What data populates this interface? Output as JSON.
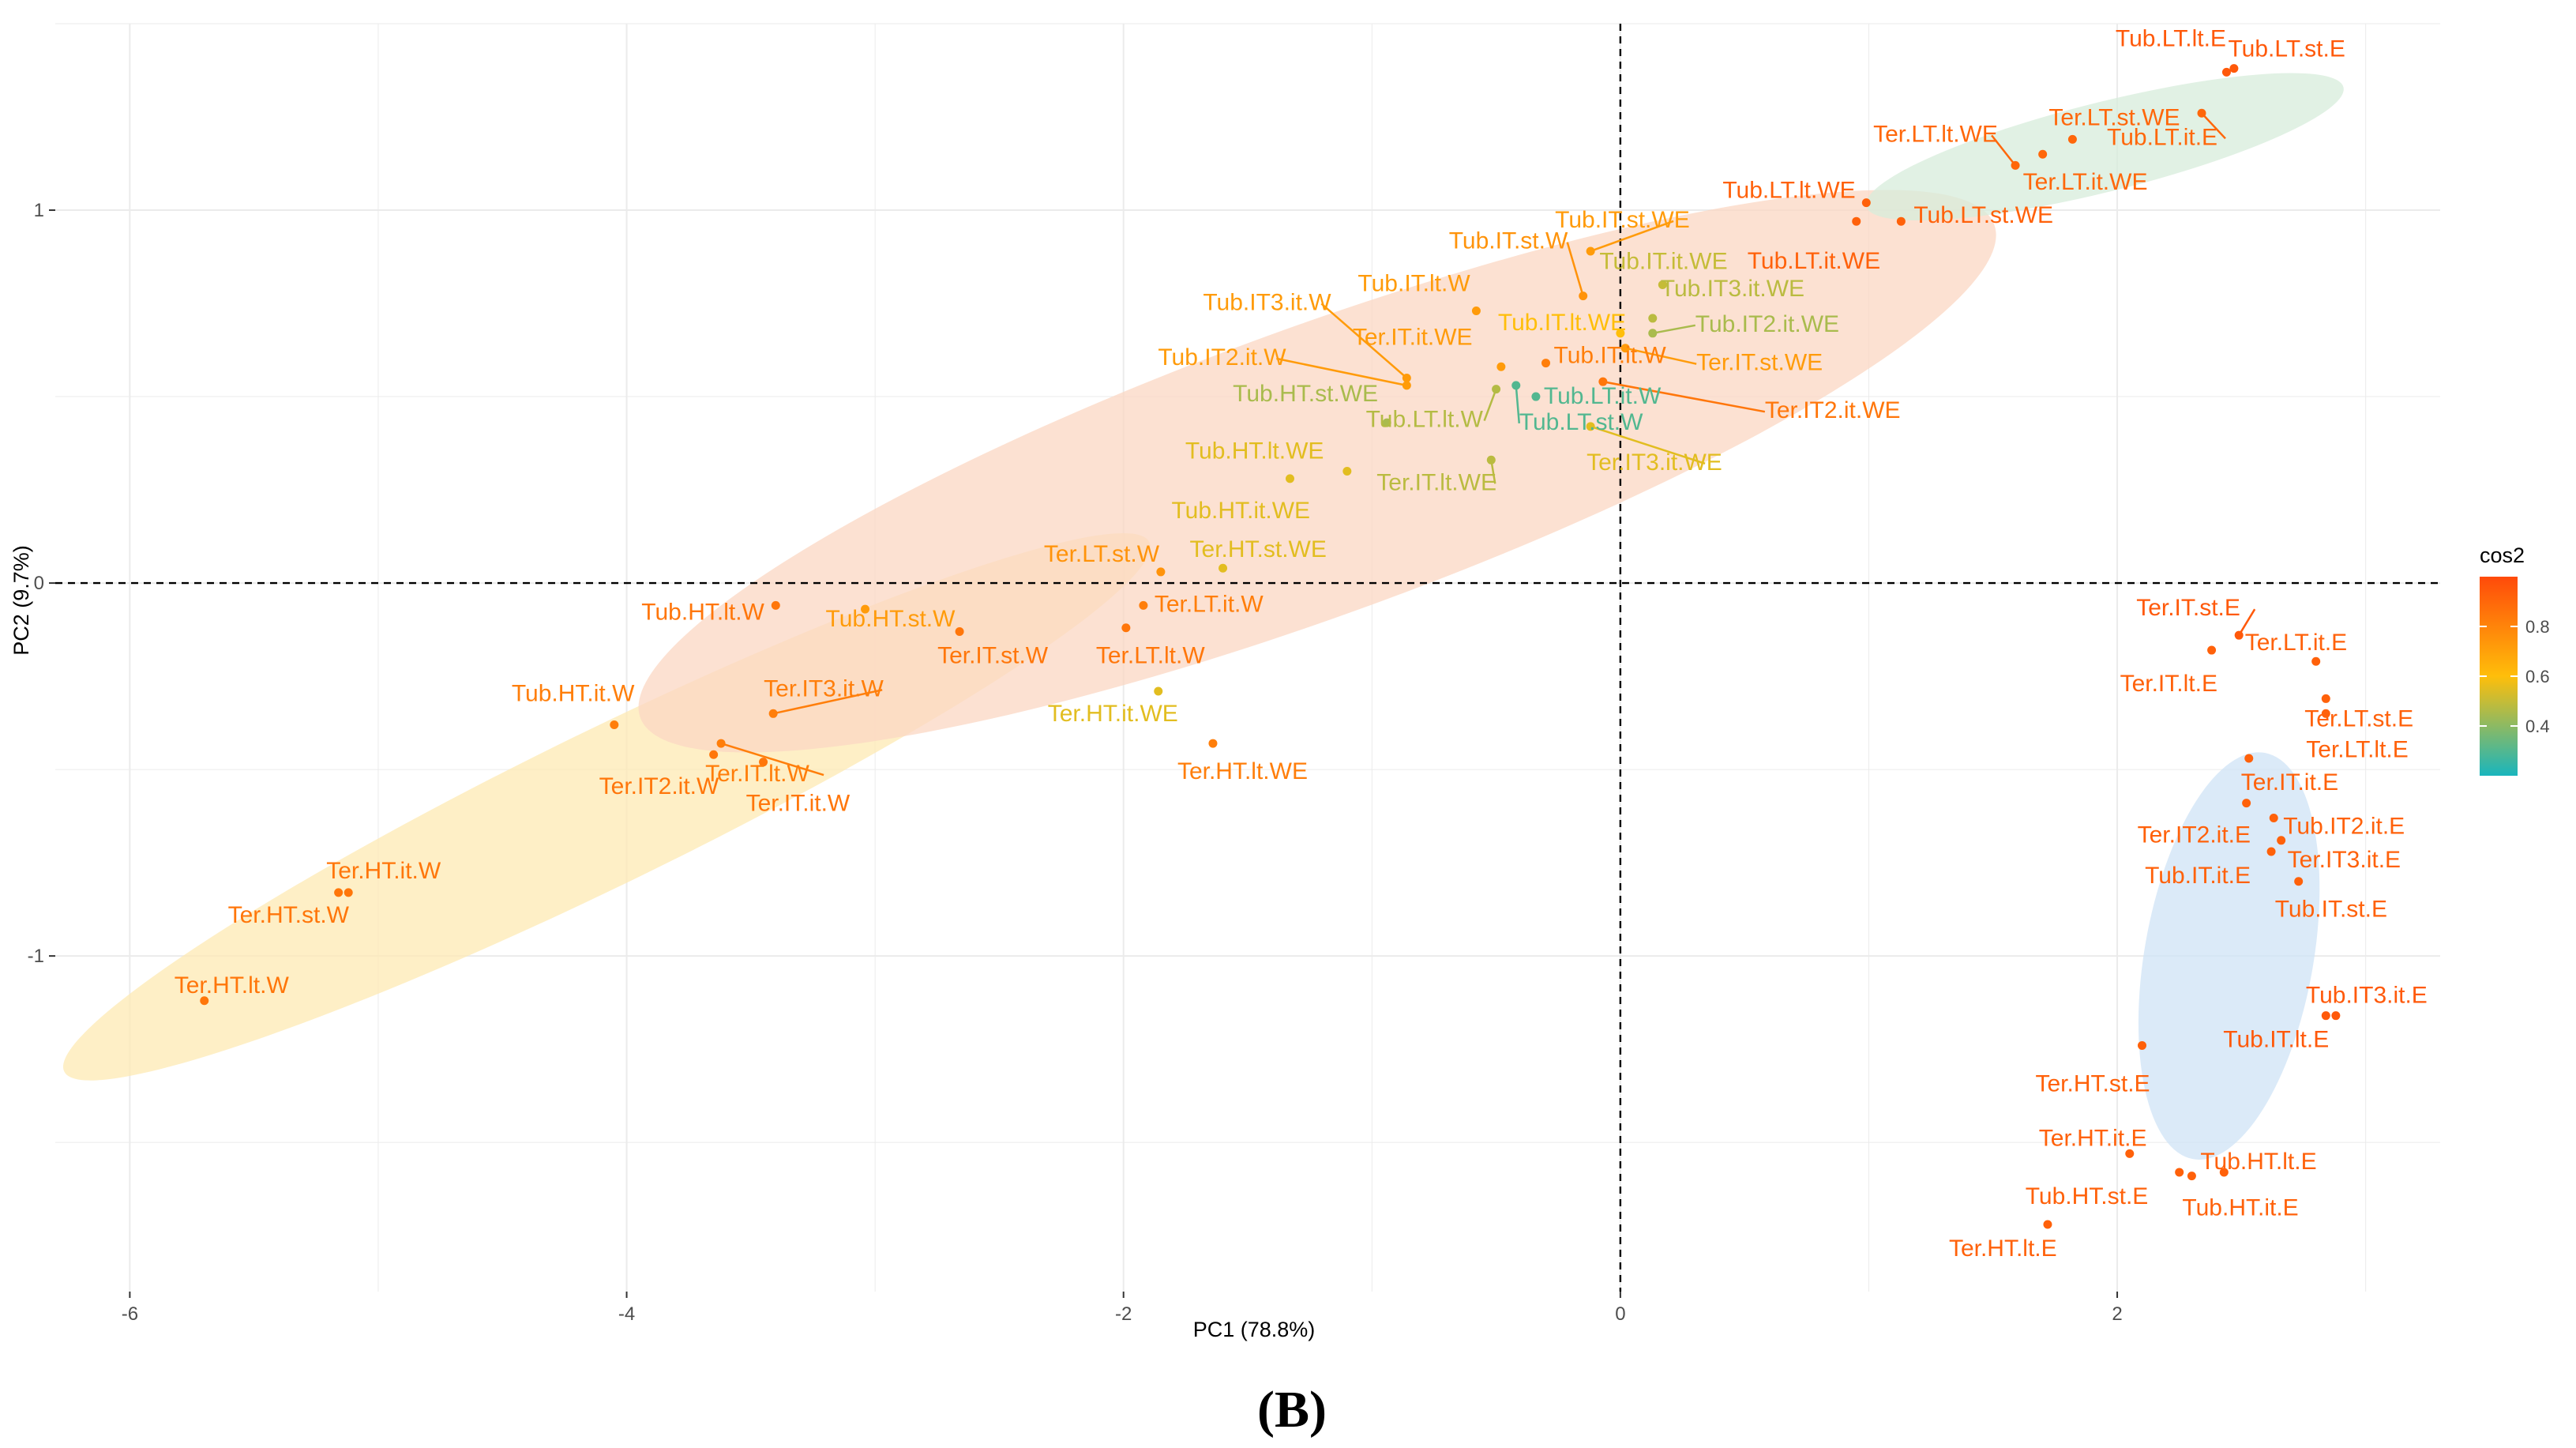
{
  "chart_data": {
    "type": "scatter",
    "title": "",
    "xlabel": "PC1 (78.8%)",
    "ylabel": "PC2 (9.7%)",
    "xlim": [
      -6.3,
      3.3
    ],
    "ylim": [
      -1.9,
      1.5
    ],
    "xticks": [
      -6,
      -4,
      -2,
      0,
      2
    ],
    "yticks": [
      -1,
      0,
      1
    ],
    "xtick_labels": [
      "-6",
      "-4",
      "-2",
      "0",
      "2"
    ],
    "ytick_labels": [
      "-1",
      "0",
      "1"
    ],
    "reference_lines": {
      "x": 0,
      "y": 0,
      "style": "dashed"
    },
    "grid": true,
    "legend": {
      "title": "cos2",
      "position": "right",
      "ticks": [
        0.4,
        0.6,
        0.8
      ],
      "tick_labels": [
        "0.4",
        "0.6",
        "0.8"
      ],
      "range": [
        0.2,
        1.0
      ],
      "colors": [
        "#19b5bd",
        "#ffbe0a",
        "#ff4a0a"
      ]
    },
    "caption": "(B)",
    "ellipses": [
      {
        "group": "W",
        "color": "#fde9b3",
        "cx": -4.08,
        "cy": -0.6,
        "rx": 2.43,
        "ry": 0.31,
        "angle_deg": -26
      },
      {
        "group": "WE",
        "color": "#fbd7c3",
        "cx": -1.22,
        "cy": 0.3,
        "rx": 2.9,
        "ry": 0.58,
        "angle_deg": -20
      },
      {
        "group": "E",
        "color": "#cfe3f6",
        "cx": 2.45,
        "cy": -1.0,
        "rx": 0.34,
        "ry": 0.83,
        "angle_deg": 10
      },
      {
        "group": "WE-LT",
        "color": "#d7ecdb",
        "cx": 1.95,
        "cy": 1.17,
        "rx": 0.99,
        "ry": 0.18,
        "angle_deg": -14
      }
    ],
    "points": [
      {
        "label": "Tub.LT.lt.E",
        "x": 2.47,
        "y": 1.38,
        "cos2": 0.95
      },
      {
        "label": "Tub.LT.st.E",
        "x": 2.44,
        "y": 1.37,
        "cos2": 0.95
      },
      {
        "label": "Tub.LT.it.E",
        "x": 2.34,
        "y": 1.26,
        "cos2": 0.9
      },
      {
        "label": "Ter.LT.st.WE",
        "x": 1.82,
        "y": 1.19,
        "cos2": 0.9
      },
      {
        "label": "Ter.LT.lt.WE",
        "x": 1.59,
        "y": 1.12,
        "cos2": 0.9
      },
      {
        "label": "Ter.LT.it.WE",
        "x": 1.7,
        "y": 1.15,
        "cos2": 0.9
      },
      {
        "label": "Tub.LT.lt.WE",
        "x": 0.99,
        "y": 1.02,
        "cos2": 0.92
      },
      {
        "label": "Tub.LT.it.WE",
        "x": 0.95,
        "y": 0.97,
        "cos2": 0.92
      },
      {
        "label": "Tub.LT.st.WE",
        "x": 1.13,
        "y": 0.97,
        "cos2": 0.92
      },
      {
        "label": "Tub.IT.st.WE",
        "x": -0.12,
        "y": 0.89,
        "cos2": 0.72
      },
      {
        "label": "Tub.IT.st.W",
        "x": -0.15,
        "y": 0.77,
        "cos2": 0.75
      },
      {
        "label": "Tub.IT.it.WE",
        "x": 0.17,
        "y": 0.8,
        "cos2": 0.5
      },
      {
        "label": "Tub.IT.lt.W",
        "x": -0.58,
        "y": 0.73,
        "cos2": 0.72
      },
      {
        "label": "Tub.IT3.it.WE",
        "x": 0.13,
        "y": 0.71,
        "cos2": 0.48
      },
      {
        "label": "Tub.IT.lt.WE",
        "x": 0.0,
        "y": 0.67,
        "cos2": 0.6
      },
      {
        "label": "Tub.IT2.it.WE",
        "x": 0.13,
        "y": 0.67,
        "cos2": 0.45
      },
      {
        "label": "Tub.IT3.it.W",
        "x": -0.86,
        "y": 0.55,
        "cos2": 0.72
      },
      {
        "label": "Tub.IT2.it.W",
        "x": -0.86,
        "y": 0.53,
        "cos2": 0.72
      },
      {
        "label": "Ter.IT.it.WE",
        "x": -0.48,
        "y": 0.58,
        "cos2": 0.72
      },
      {
        "label": "Tub.IT.it.W",
        "x": -0.3,
        "y": 0.59,
        "cos2": 0.82
      },
      {
        "label": "Ter.IT.st.WE",
        "x": 0.02,
        "y": 0.63,
        "cos2": 0.72
      },
      {
        "label": "Ter.IT2.it.WE",
        "x": -0.07,
        "y": 0.54,
        "cos2": 0.85
      },
      {
        "label": "Tub.HT.st.WE",
        "x": -0.94,
        "y": 0.43,
        "cos2": 0.45
      },
      {
        "label": "Tub.LT.lt.W",
        "x": -0.5,
        "y": 0.52,
        "cos2": 0.47
      },
      {
        "label": "Tub.LT.st.W",
        "x": -0.42,
        "y": 0.53,
        "cos2": 0.3
      },
      {
        "label": "Tub.LT.it.W",
        "x": -0.34,
        "y": 0.5,
        "cos2": 0.3
      },
      {
        "label": "Ter.IT.lt.WE",
        "x": -0.52,
        "y": 0.33,
        "cos2": 0.48
      },
      {
        "label": "Ter.IT3.it.WE",
        "x": -0.12,
        "y": 0.42,
        "cos2": 0.55
      },
      {
        "label": "Tub.HT.lt.WE",
        "x": -1.1,
        "y": 0.3,
        "cos2": 0.55
      },
      {
        "label": "Tub.HT.it.WE",
        "x": -1.33,
        "y": 0.28,
        "cos2": 0.55
      },
      {
        "label": "Ter.LT.st.W",
        "x": -1.85,
        "y": 0.03,
        "cos2": 0.75
      },
      {
        "label": "Ter.HT.st.WE",
        "x": -1.6,
        "y": 0.04,
        "cos2": 0.55
      },
      {
        "label": "Ter.LT.it.W",
        "x": -1.92,
        "y": -0.06,
        "cos2": 0.82
      },
      {
        "label": "Ter.LT.lt.W",
        "x": -1.99,
        "y": -0.12,
        "cos2": 0.85
      },
      {
        "label": "Ter.IT.st.W",
        "x": -2.66,
        "y": -0.13,
        "cos2": 0.85
      },
      {
        "label": "Ter.HT.it.WE",
        "x": -1.86,
        "y": -0.29,
        "cos2": 0.55
      },
      {
        "label": "Ter.HT.lt.WE",
        "x": -1.64,
        "y": -0.43,
        "cos2": 0.82
      },
      {
        "label": "Tub.HT.lt.W",
        "x": -3.4,
        "y": -0.06,
        "cos2": 0.85
      },
      {
        "label": "Tub.HT.st.W",
        "x": -3.04,
        "y": -0.07,
        "cos2": 0.72
      },
      {
        "label": "Ter.IT3.it.W",
        "x": -3.41,
        "y": -0.35,
        "cos2": 0.82
      },
      {
        "label": "Tub.HT.it.W",
        "x": -4.05,
        "y": -0.38,
        "cos2": 0.82
      },
      {
        "label": "Ter.IT.lt.W",
        "x": -3.62,
        "y": -0.43,
        "cos2": 0.82
      },
      {
        "label": "Ter.IT2.it.W",
        "x": -3.65,
        "y": -0.46,
        "cos2": 0.85
      },
      {
        "label": "Ter.IT.it.W",
        "x": -3.45,
        "y": -0.48,
        "cos2": 0.85
      },
      {
        "label": "Ter.HT.it.W",
        "x": -5.12,
        "y": -0.83,
        "cos2": 0.85
      },
      {
        "label": "Ter.HT.st.W",
        "x": -5.16,
        "y": -0.83,
        "cos2": 0.85
      },
      {
        "label": "Ter.HT.lt.W",
        "x": -5.7,
        "y": -1.12,
        "cos2": 0.85
      },
      {
        "label": "Ter.IT.st.E",
        "x": 2.49,
        "y": -0.14,
        "cos2": 0.95
      },
      {
        "label": "Ter.IT.lt.E",
        "x": 2.38,
        "y": -0.18,
        "cos2": 0.92
      },
      {
        "label": "Ter.LT.it.E",
        "x": 2.8,
        "y": -0.21,
        "cos2": 0.92
      },
      {
        "label": "Ter.LT.st.E",
        "x": 2.84,
        "y": -0.31,
        "cos2": 0.92
      },
      {
        "label": "Ter.LT.lt.E",
        "x": 2.84,
        "y": -0.35,
        "cos2": 0.92
      },
      {
        "label": "Ter.IT.it.E",
        "x": 2.53,
        "y": -0.47,
        "cos2": 0.92
      },
      {
        "label": "Ter.IT2.it.E",
        "x": 2.52,
        "y": -0.59,
        "cos2": 0.92
      },
      {
        "label": "Tub.IT2.it.E",
        "x": 2.63,
        "y": -0.63,
        "cos2": 0.92
      },
      {
        "label": "Ter.IT3.it.E",
        "x": 2.66,
        "y": -0.69,
        "cos2": 0.92
      },
      {
        "label": "Tub.IT.it.E",
        "x": 2.62,
        "y": -0.72,
        "cos2": 0.92
      },
      {
        "label": "Tub.IT.st.E",
        "x": 2.73,
        "y": -0.8,
        "cos2": 0.92
      },
      {
        "label": "Tub.IT3.it.E",
        "x": 2.88,
        "y": -1.16,
        "cos2": 0.95
      },
      {
        "label": "Tub.IT.lt.E",
        "x": 2.84,
        "y": -1.16,
        "cos2": 0.95
      },
      {
        "label": "Ter.HT.st.E",
        "x": 2.1,
        "y": -1.24,
        "cos2": 0.92
      },
      {
        "label": "Ter.HT.it.E",
        "x": 2.05,
        "y": -1.53,
        "cos2": 0.92
      },
      {
        "label": "Tub.HT.st.E",
        "x": 2.25,
        "y": -1.58,
        "cos2": 0.92
      },
      {
        "label": "Tub.HT.lt.E",
        "x": 2.43,
        "y": -1.58,
        "cos2": 0.92
      },
      {
        "label": "Tub.HT.it.E",
        "x": 2.3,
        "y": -1.59,
        "cos2": 0.92
      },
      {
        "label": "Ter.HT.lt.E",
        "x": 1.72,
        "y": -1.72,
        "cos2": 0.92
      }
    ]
  }
}
